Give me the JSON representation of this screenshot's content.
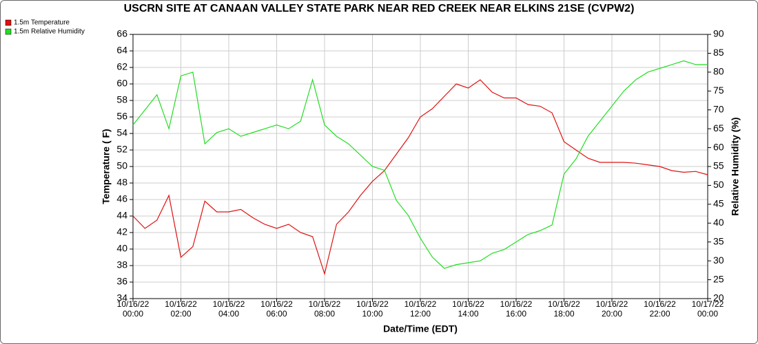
{
  "chart_data": {
    "type": "line",
    "title": "USCRN SITE AT CANAAN VALLEY STATE PARK NEAR RED CREEK NEAR ELKINS 21SE (CVPW2)",
    "xlabel": "Date/Time (EDT)",
    "ylabel": "Temperature ( F)",
    "y2label": "Relative Humidity (%)",
    "x": [
      0,
      0.5,
      1,
      1.5,
      2,
      2.5,
      3,
      3.5,
      4,
      4.5,
      5,
      5.5,
      6,
      6.5,
      7,
      7.5,
      8,
      8.5,
      9,
      9.5,
      10,
      10.5,
      11,
      11.5,
      12,
      12.5,
      13,
      13.5,
      14,
      14.5,
      15,
      15.5,
      16,
      16.5,
      17,
      17.5,
      18,
      18.5,
      19,
      19.5,
      20,
      20.5,
      21,
      21.5,
      22,
      22.5,
      23,
      23.5,
      24
    ],
    "series": [
      {
        "name": "1.5m Temperature",
        "color": "#e01010",
        "values": [
          44.0,
          42.5,
          43.5,
          46.5,
          39,
          40.3,
          45.8,
          44.5,
          44.5,
          44.8,
          43.8,
          43,
          42.5,
          43,
          42,
          41.5,
          37,
          43,
          44.5,
          46.5,
          48.2,
          49.5,
          51.5,
          53.5,
          56,
          57,
          58.5,
          60,
          59.5,
          60.5,
          59,
          58.3,
          58.3,
          57.5,
          57.3,
          56.5,
          53,
          52,
          51,
          50.5,
          50.5,
          50.5,
          50.4,
          50.2,
          50,
          49.5,
          49.3,
          49.4,
          49
        ]
      },
      {
        "name": "1.5m Relative Humidity",
        "color": "#22dd22",
        "axis": "y2",
        "values": [
          66,
          70,
          74,
          65,
          79,
          80,
          61,
          64,
          65,
          63,
          64,
          65,
          66,
          65,
          67,
          78,
          66,
          63,
          61,
          58,
          55,
          54,
          46,
          42,
          36,
          31,
          28,
          29,
          29.5,
          30,
          32,
          33,
          35,
          37,
          38,
          39.5,
          53,
          57,
          63,
          67,
          71,
          75,
          78,
          80,
          81,
          82,
          83,
          82,
          82
        ]
      }
    ],
    "xlim": [
      0,
      24
    ],
    "xticks": [
      {
        "value": 0,
        "label": "10/16/22 00:00"
      },
      {
        "value": 2,
        "label": "10/16/22 02:00"
      },
      {
        "value": 4,
        "label": "10/16/22 04:00"
      },
      {
        "value": 6,
        "label": "10/16/22 06:00"
      },
      {
        "value": 8,
        "label": "10/16/22 08:00"
      },
      {
        "value": 10,
        "label": "10/16/22 10:00"
      },
      {
        "value": 12,
        "label": "10/16/22 12:00"
      },
      {
        "value": 14,
        "label": "10/16/22 14:00"
      },
      {
        "value": 16,
        "label": "10/16/22 16:00"
      },
      {
        "value": 18,
        "label": "10/16/22 18:00"
      },
      {
        "value": 20,
        "label": "10/16/22 20:00"
      },
      {
        "value": 22,
        "label": "10/16/22 22:00"
      },
      {
        "value": 24,
        "label": "10/17/22 00:00"
      }
    ],
    "ylim": [
      34,
      66
    ],
    "yticks": [
      34,
      36,
      38,
      40,
      42,
      44,
      46,
      48,
      50,
      52,
      54,
      56,
      58,
      60,
      62,
      64,
      66
    ],
    "y2lim": [
      20,
      90
    ],
    "y2ticks": [
      20,
      25,
      30,
      35,
      40,
      45,
      50,
      55,
      60,
      65,
      70,
      75,
      80,
      85,
      90
    ],
    "grid": true,
    "legend": "top-left"
  }
}
